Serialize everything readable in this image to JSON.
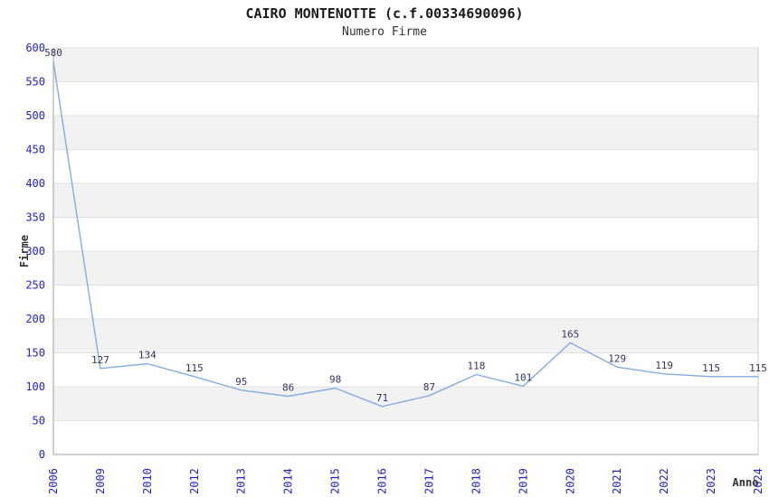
{
  "chart_data": {
    "type": "line",
    "title": "CAIRO MONTENOTTE (c.f.00334690096)",
    "subtitle": "Numero Firme",
    "xlabel": "Anno",
    "ylabel": "Firme",
    "categories": [
      "2006",
      "2009",
      "2010",
      "2012",
      "2013",
      "2014",
      "2015",
      "2016",
      "2017",
      "2018",
      "2019",
      "2020",
      "2021",
      "2022",
      "2023",
      "2024"
    ],
    "values": [
      580,
      127,
      134,
      115,
      95,
      86,
      98,
      71,
      87,
      118,
      101,
      165,
      129,
      119,
      115,
      115
    ],
    "ylim": [
      0,
      600
    ],
    "ytick_step": 50,
    "grid": true,
    "legend_position": "none",
    "data_labels": true,
    "band_fill_between_gridlines": "alternating",
    "colors": {
      "line": "#85ace0",
      "tick_label": "#2222cc",
      "data_label": "#333366",
      "band": "#f2f2f2",
      "gridline": "#e0e0e0",
      "axis_line": "#a0a0a0",
      "plot_border": "#cccccc",
      "title": "#1a1a1a",
      "subtitle": "#333333",
      "axis_title": "#333333",
      "background": "#ffffff"
    }
  }
}
